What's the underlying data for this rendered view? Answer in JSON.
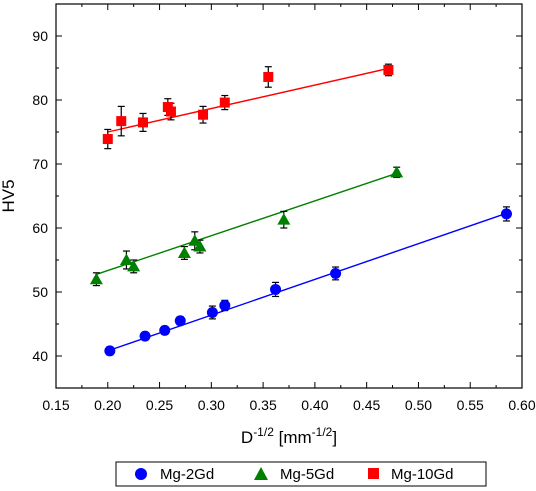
{
  "chart_data": {
    "type": "scatter",
    "title": "",
    "xlabel": {
      "base": "D",
      "base_sup": "-1/2",
      "unit_open": " [mm",
      "unit_sup": "-1/2",
      "unit_close": "]"
    },
    "ylabel": "HV5",
    "xlim": [
      0.15,
      0.6
    ],
    "ylim": [
      35,
      95
    ],
    "xticks": [
      0.15,
      0.2,
      0.25,
      0.3,
      0.35,
      0.4,
      0.45,
      0.5,
      0.55,
      0.6
    ],
    "xtick_labels": [
      "0.15",
      "0.20",
      "0.25",
      "0.30",
      "0.35",
      "0.40",
      "0.45",
      "0.50",
      "0.55",
      "0.60"
    ],
    "yticks": [
      40,
      50,
      60,
      70,
      80,
      90
    ],
    "ytick_labels": [
      "40",
      "50",
      "60",
      "70",
      "80",
      "90"
    ],
    "grid": false,
    "legend_position": "bottom",
    "series": [
      {
        "name": "Mg-2Gd",
        "marker": "circle",
        "color": "#0000ff",
        "fit": {
          "x": [
            0.2,
            0.585
          ],
          "y": [
            40.8,
            62.3
          ]
        },
        "points": [
          {
            "x": 0.202,
            "y": 40.8,
            "err": 0.6
          },
          {
            "x": 0.236,
            "y": 43.1,
            "err": 0.5
          },
          {
            "x": 0.255,
            "y": 44.0,
            "err": 0.6
          },
          {
            "x": 0.27,
            "y": 45.5,
            "err": 0.6
          },
          {
            "x": 0.301,
            "y": 46.8,
            "err": 1.0
          },
          {
            "x": 0.313,
            "y": 47.9,
            "err": 0.8
          },
          {
            "x": 0.362,
            "y": 50.4,
            "err": 1.1
          },
          {
            "x": 0.42,
            "y": 52.9,
            "err": 1.0
          },
          {
            "x": 0.585,
            "y": 62.2,
            "err": 1.1
          }
        ]
      },
      {
        "name": "Mg-5Gd",
        "marker": "triangle",
        "color": "#008000",
        "fit": {
          "x": [
            0.188,
            0.48
          ],
          "y": [
            52.7,
            68.6
          ]
        },
        "points": [
          {
            "x": 0.189,
            "y": 52.0,
            "err": 1.0
          },
          {
            "x": 0.218,
            "y": 55.0,
            "err": 1.4
          },
          {
            "x": 0.225,
            "y": 54.0,
            "err": 1.0
          },
          {
            "x": 0.274,
            "y": 56.1,
            "err": 1.0
          },
          {
            "x": 0.284,
            "y": 58.0,
            "err": 1.4
          },
          {
            "x": 0.289,
            "y": 57.1,
            "err": 1.0
          },
          {
            "x": 0.37,
            "y": 61.3,
            "err": 1.3
          },
          {
            "x": 0.479,
            "y": 68.7,
            "err": 0.8
          }
        ]
      },
      {
        "name": "Mg-10Gd",
        "marker": "square",
        "color": "#ff0000",
        "fit": {
          "x": [
            0.2,
            0.47
          ],
          "y": [
            75.0,
            84.9
          ]
        },
        "points": [
          {
            "x": 0.2,
            "y": 73.9,
            "err": 1.5
          },
          {
            "x": 0.213,
            "y": 76.7,
            "err": 2.3
          },
          {
            "x": 0.234,
            "y": 76.5,
            "err": 1.4
          },
          {
            "x": 0.258,
            "y": 78.9,
            "err": 1.3
          },
          {
            "x": 0.261,
            "y": 78.2,
            "err": 1.3
          },
          {
            "x": 0.292,
            "y": 77.7,
            "err": 1.3
          },
          {
            "x": 0.313,
            "y": 79.6,
            "err": 1.1
          },
          {
            "x": 0.355,
            "y": 83.6,
            "err": 1.6
          },
          {
            "x": 0.471,
            "y": 84.7,
            "err": 0.9
          }
        ]
      }
    ]
  }
}
